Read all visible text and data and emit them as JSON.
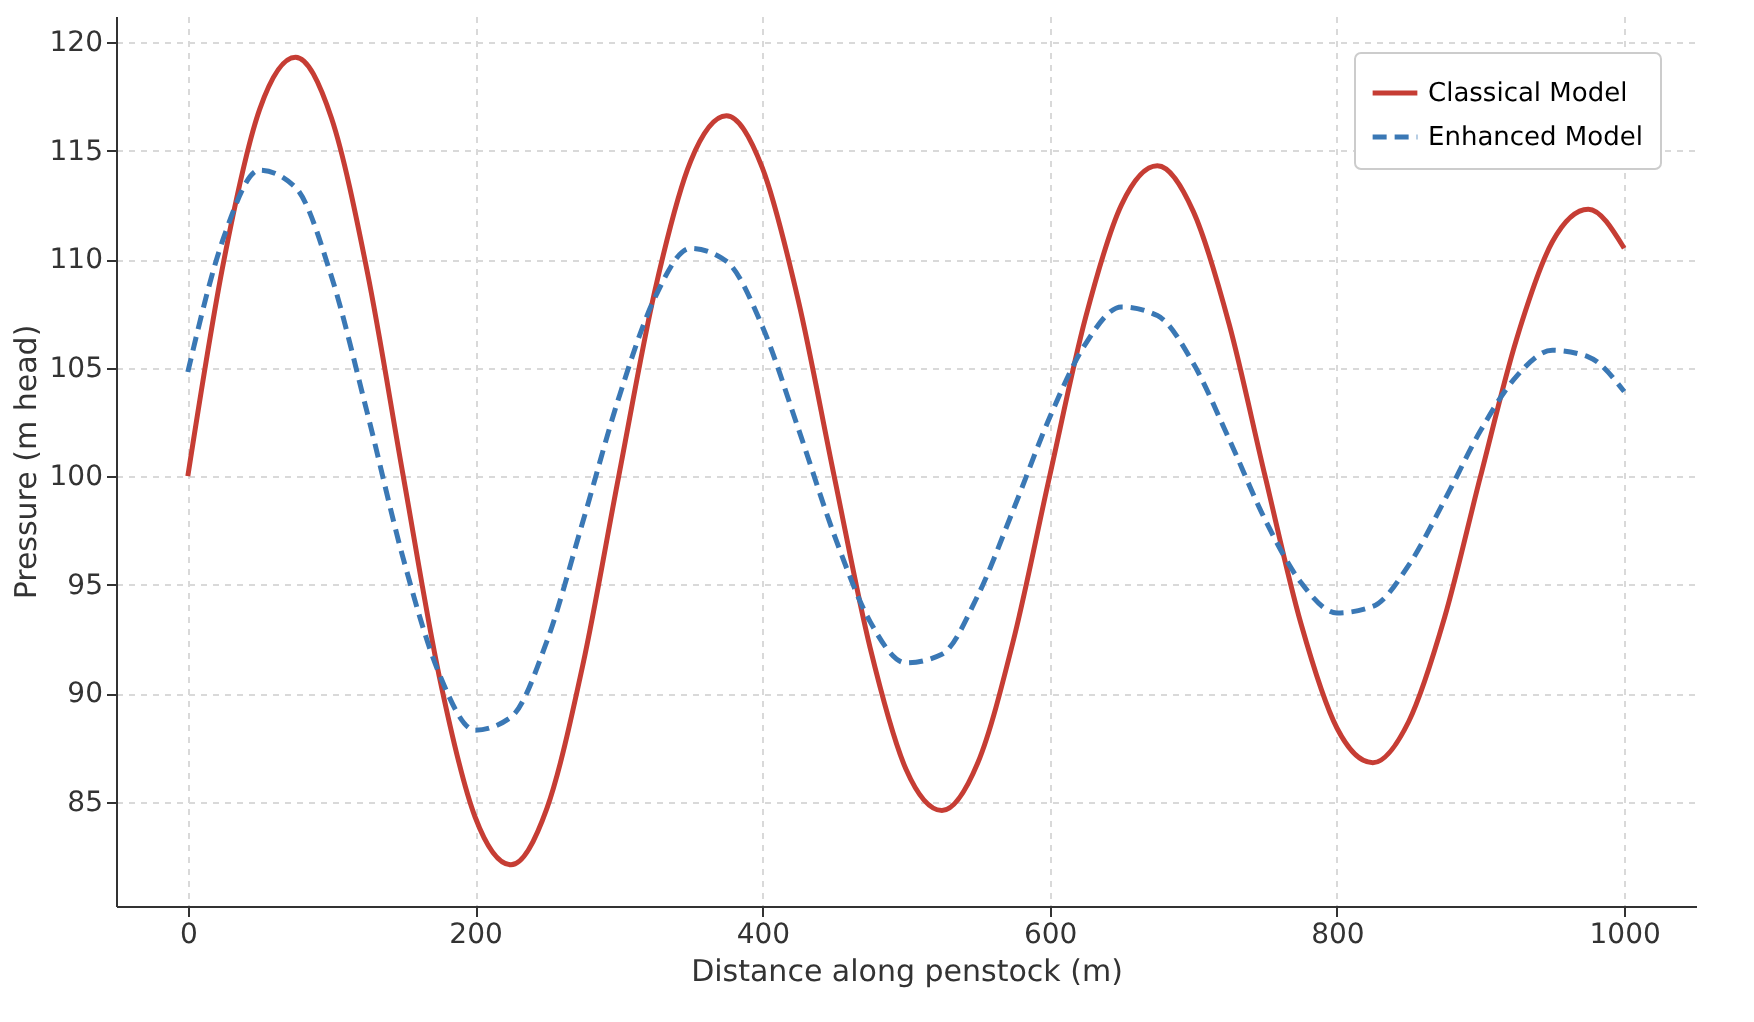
{
  "chart_data": {
    "type": "line",
    "xlabel": "Distance along penstock (m)",
    "ylabel": "Pressure (m head)",
    "x": [
      0,
      25,
      50,
      75,
      100,
      125,
      150,
      175,
      200,
      225,
      250,
      275,
      300,
      325,
      350,
      375,
      400,
      425,
      450,
      475,
      500,
      525,
      550,
      575,
      600,
      625,
      650,
      675,
      700,
      725,
      750,
      775,
      800,
      825,
      850,
      875,
      900,
      925,
      950,
      975,
      1000
    ],
    "series": [
      {
        "name": "Classical Model",
        "color": "#c63d34",
        "line_style": "solid",
        "values": [
          100,
          109.9,
          116.9,
          119.3,
          116.5,
          109.4,
          100,
          90.8,
          84.3,
          82.1,
          84.7,
          91.3,
          100,
          108.5,
          114.5,
          116.6,
          114.2,
          108.1,
          100,
          92.1,
          86.5,
          84.6,
          86.8,
          92.5,
          100,
          107.3,
          112.5,
          114.3,
          112.2,
          107.0,
          100,
          93.2,
          88.4,
          86.8,
          88.7,
          93.5,
          100,
          106.3,
          110.8,
          112.3,
          110.5
        ]
      },
      {
        "name": "Enhanced Model",
        "color": "#3a78b5",
        "line_style": "dashed",
        "values": [
          104.8,
          111.0,
          114.1,
          113.3,
          109.2,
          102.9,
          96.2,
          90.9,
          88.3,
          88.9,
          92.4,
          97.9,
          103.6,
          108.2,
          110.5,
          109.9,
          106.9,
          102.2,
          97.3,
          93.3,
          91.4,
          91.8,
          94.5,
          98.5,
          102.7,
          106.1,
          107.8,
          107.4,
          105.2,
          101.7,
          98.0,
          95.1,
          93.7,
          94.0,
          95.9,
          98.9,
          102.1,
          104.6,
          105.8,
          105.5,
          103.9
        ]
      }
    ],
    "xlim": [
      -50,
      1050
    ],
    "xticks": [
      0,
      200,
      400,
      600,
      800,
      1000
    ],
    "ylim": [
      80.2,
      121.2
    ],
    "yticks": [
      85,
      90,
      95,
      100,
      105,
      110,
      115,
      120
    ],
    "grid": true,
    "legend": "top right"
  }
}
